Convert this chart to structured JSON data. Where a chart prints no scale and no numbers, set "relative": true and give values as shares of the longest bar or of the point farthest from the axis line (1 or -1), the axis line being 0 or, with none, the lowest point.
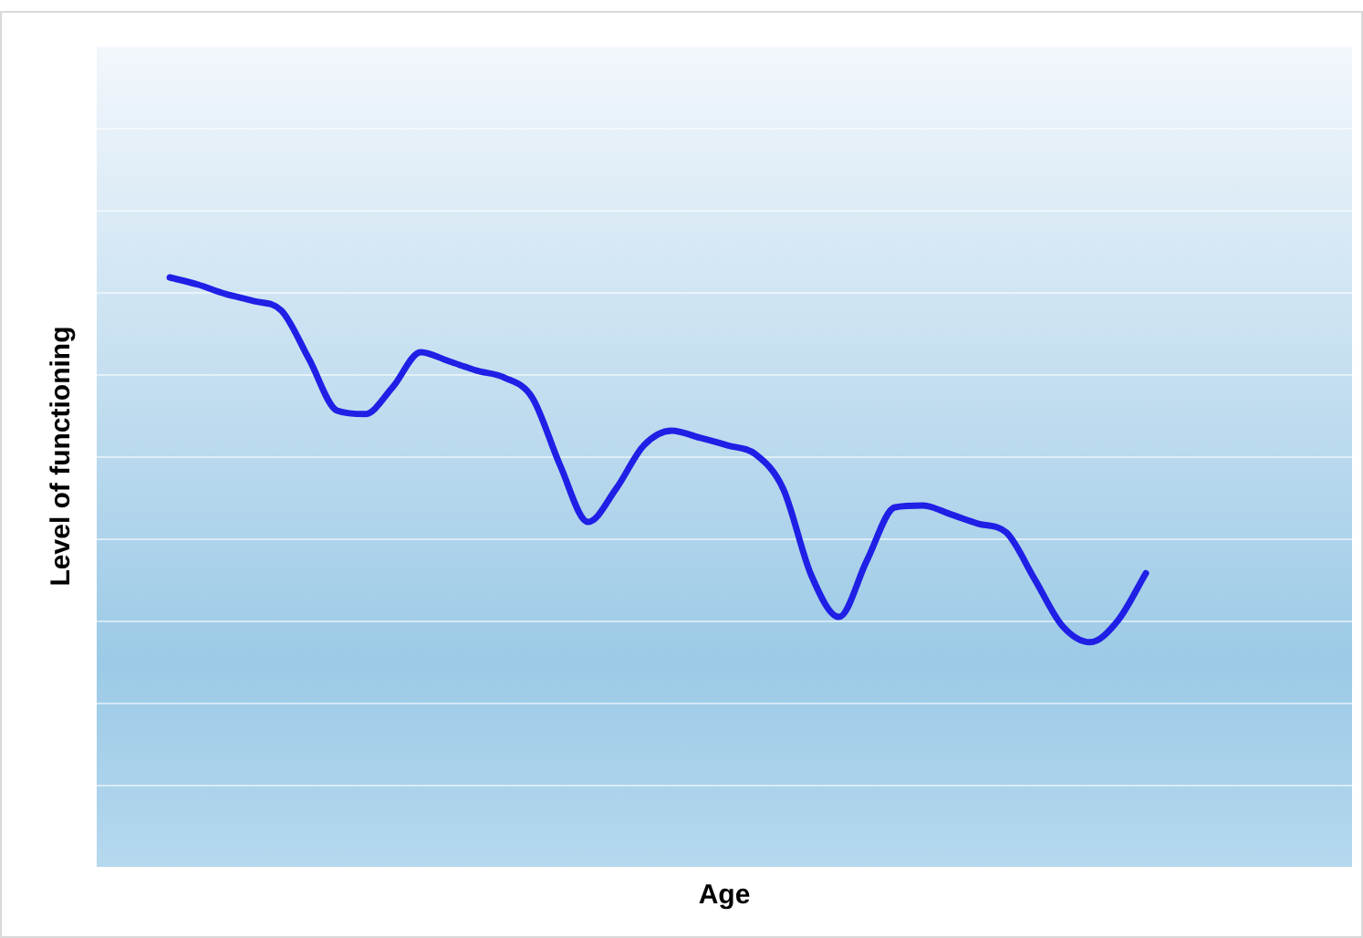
{
  "chart_data": {
    "type": "line",
    "xlabel": "Age",
    "ylabel": "Level of functioning",
    "relative": true,
    "grid": "y",
    "marker": "none",
    "line_style": "solid",
    "legend": false,
    "categories": [
      null,
      null,
      null,
      null,
      null,
      null,
      null,
      null,
      null,
      null,
      null,
      null,
      null,
      null,
      null,
      null,
      null,
      null,
      null,
      null,
      null,
      null,
      null,
      null,
      null,
      null,
      null,
      null,
      null,
      null,
      null,
      null,
      null,
      null,
      null,
      null
    ],
    "series": [
      {
        "color": "#1f1fe6",
        "values": [
          1,
          0.988,
          0.972,
          0.96,
          0.944,
          0.861,
          0.774,
          0.768,
          0.814,
          0.873,
          0.858,
          0.842,
          0.83,
          0.796,
          0.681,
          0.585,
          0.641,
          0.715,
          0.74,
          0.728,
          0.715,
          0.7,
          0.641,
          0.495,
          0.424,
          0.52,
          0.61,
          0.613,
          0.598,
          0.582,
          0.567,
          0.489,
          0.409,
          0.381,
          0.418,
          0.498
        ]
      }
    ]
  }
}
